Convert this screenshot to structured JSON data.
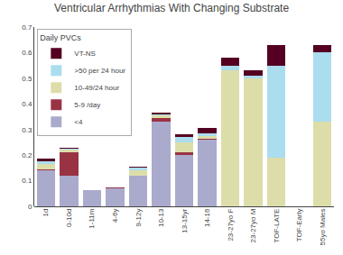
{
  "chart_data": {
    "type": "bar",
    "stacked": true,
    "title": "Ventricular Arrhythmias With Changing Substrate",
    "categories": [
      "1d",
      "0-10d",
      "1-11m",
      "4-6y",
      "9-12y",
      "10-13",
      "13-15yr",
      "14-16",
      "23-27yo F",
      "23-27yo M",
      "TOF-LATE",
      "TOF-Early",
      "55yo Males"
    ],
    "legend_title": "Daily PVCs",
    "legend": "upper left",
    "grid": false,
    "ylim": [
      0,
      0.7
    ],
    "yticks": [
      0,
      0.1,
      0.2,
      0.3,
      0.4,
      0.5,
      0.6,
      0.7
    ],
    "series": [
      {
        "name": "<4",
        "color": "#aaaacc",
        "values": [
          0.14,
          0.12,
          0.065,
          0.07,
          0.12,
          0.33,
          0.2,
          0.26,
          0.0,
          0.0,
          0.0,
          0.0,
          0.0
        ]
      },
      {
        "name": "5-9 /day",
        "color": "#993344",
        "values": [
          0.005,
          0.09,
          0.0,
          0.005,
          0.0,
          0.015,
          0.01,
          0.005,
          0.0,
          0.0,
          0.0,
          0.0,
          0.0
        ]
      },
      {
        "name": "10-49/24 hour",
        "color": "#ddddaa",
        "values": [
          0.02,
          0.01,
          0.0,
          0.0,
          0.02,
          0.01,
          0.04,
          0.01,
          0.53,
          0.5,
          0.19,
          0.0,
          0.33
        ]
      },
      {
        "name": ">50 per 24 hour",
        "color": "#aaddee",
        "values": [
          0.01,
          0.005,
          0.0,
          0.0,
          0.01,
          0.005,
          0.02,
          0.01,
          0.02,
          0.01,
          0.36,
          0.0,
          0.27
        ]
      },
      {
        "name": "VT-NS",
        "color": "#550022",
        "values": [
          0.01,
          0.005,
          0.0,
          0.0,
          0.005,
          0.005,
          0.01,
          0.02,
          0.03,
          0.02,
          0.08,
          0.0,
          0.03
        ]
      }
    ]
  }
}
